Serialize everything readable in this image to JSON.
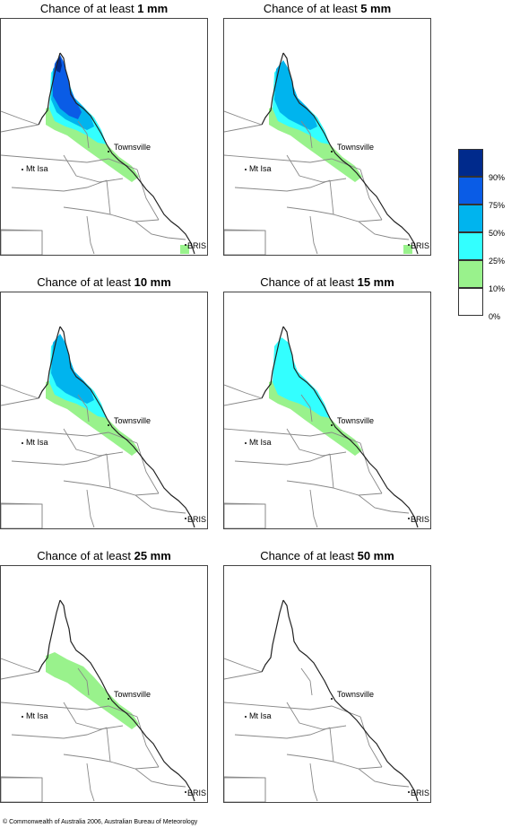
{
  "title_prefix": "Chance of at least",
  "panels": [
    {
      "amount": "1 mm",
      "coverage": {
        "green": true,
        "cyan": true,
        "mid": true,
        "dark": true
      }
    },
    {
      "amount": "5 mm",
      "coverage": {
        "green": true,
        "cyan": true,
        "mid": true,
        "dark": false
      }
    },
    {
      "amount": "10 mm",
      "coverage": {
        "green": true,
        "cyan": true,
        "mid": true,
        "dark": false
      }
    },
    {
      "amount": "15 mm",
      "coverage": {
        "green": true,
        "cyan": true,
        "mid": false,
        "dark": false
      }
    },
    {
      "amount": "25 mm",
      "coverage": {
        "green": true,
        "cyan": false,
        "mid": false,
        "dark": false
      }
    },
    {
      "amount": "50 mm",
      "coverage": {
        "green": false,
        "cyan": false,
        "mid": false,
        "dark": false
      }
    }
  ],
  "places": {
    "townsville": "Townsville",
    "mt_isa": "Mt Isa",
    "bris": "BRIS"
  },
  "legend": {
    "labels": [
      "90%",
      "75%",
      "50%",
      "25%",
      "10%",
      "0%"
    ],
    "colors": [
      "#002a8c",
      "#0a5ce6",
      "#00b4ee",
      "#33ffff",
      "#99f28c",
      "#ffffff"
    ]
  },
  "copyright": "© Commonwealth of Australia 2006, Australian Bureau of Meteorology"
}
